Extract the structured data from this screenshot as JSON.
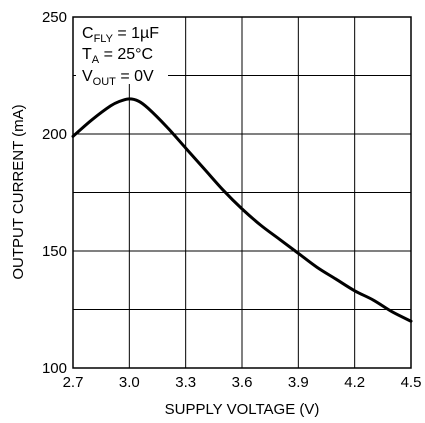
{
  "chart_data": {
    "type": "line",
    "xlabel": "SUPPLY VOLTAGE (V)",
    "ylabel": "OUTPUT CURRENT (mA)",
    "xlim": [
      2.7,
      4.5
    ],
    "ylim": [
      100,
      250
    ],
    "x_ticks": [
      2.7,
      3.0,
      3.3,
      3.6,
      3.9,
      4.2,
      4.5
    ],
    "x_tick_labels": [
      "2.7",
      "3.0",
      "3.3",
      "3.6",
      "3.9",
      "4.2",
      "4.5"
    ],
    "y_ticks": [
      100,
      150,
      200,
      250
    ],
    "y_tick_labels": [
      "100",
      "150",
      "200",
      "250"
    ],
    "y_gridlines": [
      100,
      125,
      150,
      175,
      200,
      225,
      250
    ],
    "grid": true,
    "annotations": {
      "line1": {
        "main": "C",
        "sub": "FLY",
        "rest": " = 1µF"
      },
      "line2": {
        "main": "T",
        "sub": "A",
        "rest": " = 25°C"
      },
      "line3": {
        "main": "V",
        "sub": "OUT",
        "rest": " = 0V"
      }
    },
    "series": [
      {
        "x": [
          2.7,
          2.8,
          2.9,
          2.95,
          3.0,
          3.05,
          3.1,
          3.2,
          3.3,
          3.4,
          3.5,
          3.6,
          3.7,
          3.8,
          3.9,
          4.0,
          4.1,
          4.2,
          4.3,
          4.4,
          4.5
        ],
        "y": [
          199,
          206,
          212,
          214,
          215,
          214,
          211,
          203,
          194,
          185,
          176,
          168,
          161,
          155,
          149,
          143,
          138,
          133,
          129,
          124,
          120
        ]
      }
    ],
    "colors": {
      "line": "#000000",
      "grid": "#000000",
      "background": "#ffffff"
    }
  }
}
